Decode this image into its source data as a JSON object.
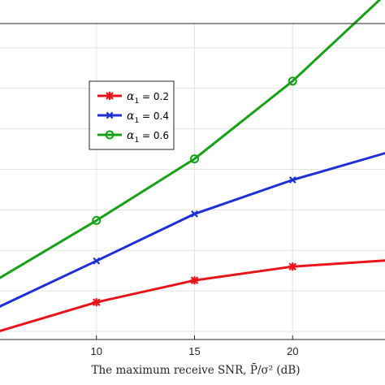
{
  "chart_data": {
    "type": "line",
    "xlabel": "The maximum receive SNR, P̄/σ² (dB)",
    "ylabel": "",
    "title": "",
    "xlim": [
      5,
      25
    ],
    "ylim": [
      0.4,
      4.3
    ],
    "x_ticks": [
      10,
      15,
      20
    ],
    "y_grid": [
      0.5,
      1,
      1.5,
      2,
      2.5,
      3,
      3.5,
      4
    ],
    "grid": true,
    "legend_position": "upper-left-center",
    "series": [
      {
        "name": "α₁ = 0.2",
        "label_main": "α",
        "label_sub": "1",
        "label_rest": " = 0.2",
        "color": "#e8141c",
        "marker": "star",
        "x": [
          5,
          10,
          15,
          20,
          25
        ],
        "y": [
          0.5,
          0.86,
          1.13,
          1.3,
          1.38
        ]
      },
      {
        "name": "α₁ = 0.4",
        "label_main": "α",
        "label_sub": "1",
        "label_rest": " = 0.4",
        "color": "#1f2fd6",
        "marker": "x",
        "x": [
          5,
          10,
          15,
          20,
          25
        ],
        "y": [
          0.8,
          1.37,
          1.95,
          2.37,
          2.72
        ]
      },
      {
        "name": "α₁ = 0.6",
        "label_main": "α",
        "label_sub": "1",
        "label_rest": " = 0.6",
        "color": "#18a018",
        "marker": "circle",
        "x": [
          5,
          10,
          15,
          20,
          25
        ],
        "y": [
          1.15,
          1.87,
          2.63,
          3.59,
          4.72
        ]
      }
    ]
  }
}
